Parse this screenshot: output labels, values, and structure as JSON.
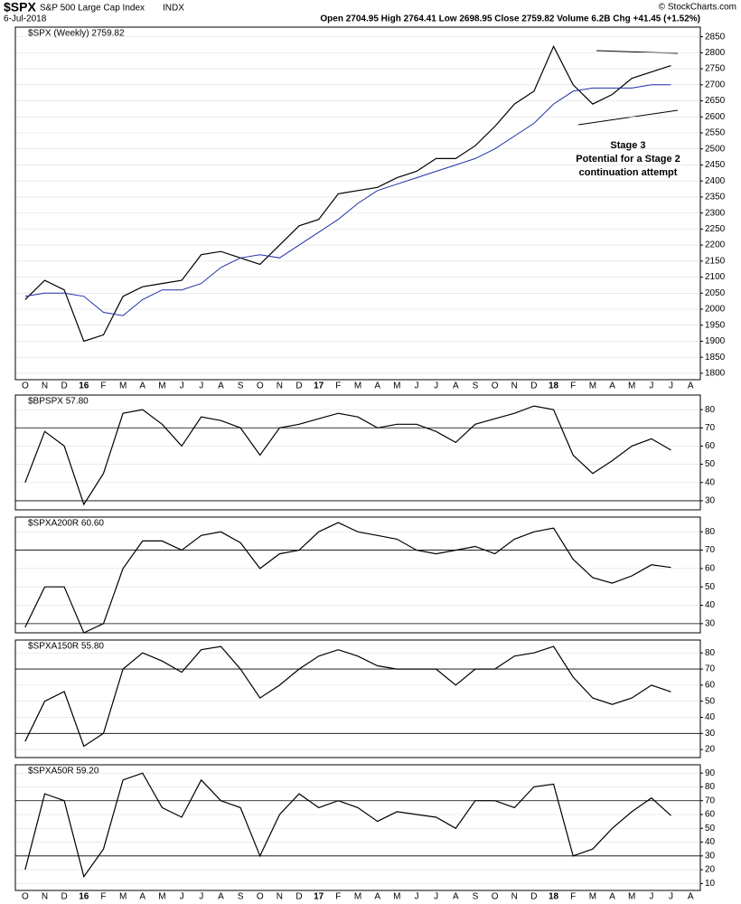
{
  "chart_data": [
    {
      "type": "line",
      "title": "$SPX",
      "subtitle": "S&P 500 Large Cap Index",
      "exchange": "INDX",
      "date": "6-Jul-2018",
      "quote": "Open 2704.95  High 2764.41  Low 2698.95  Close 2759.82  Volume 6.2B  Chg +41.45 (+1.52%)",
      "source": "© StockCharts.com",
      "annotations": [
        "Stage 3",
        "Potential for a Stage 2",
        "continuation attempt"
      ],
      "categories": [
        "O",
        "N",
        "D",
        "16",
        "F",
        "M",
        "A",
        "M",
        "J",
        "J",
        "A",
        "S",
        "O",
        "N",
        "D",
        "17",
        "F",
        "M",
        "A",
        "M",
        "J",
        "J",
        "A",
        "S",
        "O",
        "N",
        "D",
        "18",
        "F",
        "M",
        "A",
        "M",
        "J",
        "J",
        "A"
      ],
      "series": [
        {
          "name": "$SPX (Weekly) 2759.82",
          "color": "#000000",
          "values": [
            2030,
            2090,
            2060,
            1900,
            1920,
            2040,
            2070,
            2080,
            2090,
            2170,
            2180,
            2160,
            2140,
            2200,
            2260,
            2280,
            2360,
            2370,
            2380,
            2410,
            2430,
            2470,
            2470,
            2510,
            2570,
            2640,
            2680,
            2820,
            2700,
            2640,
            2670,
            2720,
            2740,
            2759.82,
            null
          ]
        },
        {
          "color": "#1f2fa8",
          "values": [
            2040,
            2050,
            2050,
            2040,
            1990,
            1980,
            2030,
            2060,
            2060,
            2080,
            2130,
            2160,
            2170,
            2160,
            2200,
            2240,
            2280,
            2330,
            2370,
            2390,
            2410,
            2430,
            2450,
            2470,
            2500,
            2540,
            2580,
            2640,
            2680,
            2690,
            2690,
            2690,
            2700,
            2700,
            null
          ]
        }
      ],
      "ylim": [
        1780,
        2880
      ],
      "yticks": [
        1800,
        1850,
        1900,
        1950,
        2000,
        2050,
        2100,
        2150,
        2200,
        2250,
        2300,
        2350,
        2400,
        2450,
        2500,
        2550,
        2600,
        2650,
        2700,
        2750,
        2800,
        2850
      ],
      "grid": true
    },
    {
      "type": "line",
      "series": [
        {
          "name": "$BPSPX 57.80",
          "color": "#000000",
          "values": [
            40,
            68,
            60,
            28,
            45,
            78,
            80,
            72,
            60,
            76,
            74,
            70,
            55,
            70,
            72,
            75,
            78,
            76,
            70,
            72,
            72,
            68,
            62,
            72,
            75,
            78,
            82,
            80,
            55,
            45,
            52,
            60,
            64,
            57.8,
            null
          ]
        }
      ],
      "ylim": [
        25,
        88
      ],
      "yticks": [
        30,
        40,
        50,
        60,
        70,
        80
      ],
      "hlines": [
        30,
        70
      ],
      "grid": true
    },
    {
      "type": "line",
      "series": [
        {
          "name": "$SPXA200R 60.60",
          "color": "#000000",
          "values": [
            28,
            50,
            50,
            25,
            30,
            60,
            75,
            75,
            70,
            78,
            80,
            74,
            60,
            68,
            70,
            80,
            85,
            80,
            78,
            76,
            70,
            68,
            70,
            72,
            68,
            76,
            80,
            82,
            65,
            55,
            52,
            56,
            62,
            60.6,
            null
          ]
        }
      ],
      "ylim": [
        25,
        88
      ],
      "yticks": [
        30,
        40,
        50,
        60,
        70,
        80
      ],
      "hlines": [
        30,
        70
      ],
      "grid": true
    },
    {
      "type": "line",
      "series": [
        {
          "name": "$SPXA150R 55.80",
          "color": "#000000",
          "values": [
            25,
            50,
            56,
            22,
            30,
            70,
            80,
            75,
            68,
            82,
            84,
            70,
            52,
            60,
            70,
            78,
            82,
            78,
            72,
            70,
            70,
            70,
            60,
            70,
            70,
            78,
            80,
            84,
            65,
            52,
            48,
            52,
            60,
            55.8,
            null
          ]
        }
      ],
      "ylim": [
        15,
        88
      ],
      "yticks": [
        20,
        30,
        40,
        50,
        60,
        70,
        80
      ],
      "hlines": [
        30,
        70
      ],
      "grid": true
    },
    {
      "type": "line",
      "series": [
        {
          "name": "$SPXA50R 59.20",
          "color": "#000000",
          "values": [
            20,
            75,
            70,
            15,
            35,
            85,
            90,
            65,
            58,
            85,
            70,
            65,
            30,
            60,
            75,
            65,
            70,
            65,
            55,
            62,
            60,
            58,
            50,
            70,
            70,
            65,
            80,
            82,
            30,
            35,
            50,
            62,
            72,
            59.2,
            null
          ]
        }
      ],
      "categories": [
        "O",
        "N",
        "D",
        "16",
        "F",
        "M",
        "A",
        "M",
        "J",
        "J",
        "A",
        "S",
        "O",
        "N",
        "D",
        "17",
        "F",
        "M",
        "A",
        "M",
        "J",
        "J",
        "A",
        "S",
        "O",
        "N",
        "D",
        "18",
        "F",
        "M",
        "A",
        "M",
        "J",
        "J",
        "A"
      ],
      "ylim": [
        5,
        96
      ],
      "yticks": [
        10,
        20,
        30,
        40,
        50,
        60,
        70,
        80,
        90
      ],
      "hlines": [
        30,
        70
      ],
      "grid": true
    }
  ]
}
